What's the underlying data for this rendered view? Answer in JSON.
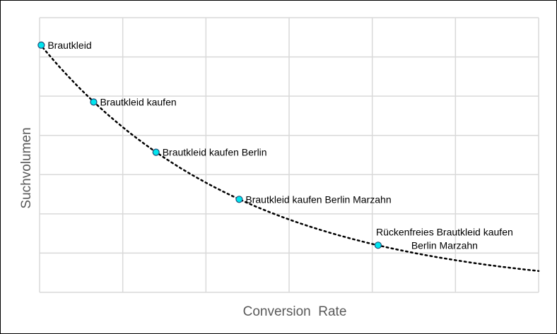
{
  "chart_data": {
    "type": "scatter",
    "title": "",
    "xlabel": "Conversion  Rate",
    "ylabel": "Suchvolumen",
    "xlim": [
      0,
      6
    ],
    "ylim": [
      0,
      7
    ],
    "grid": true,
    "axis_tick_labels": false,
    "colors": {
      "marker_fill": "#00e5ee",
      "marker_stroke": "#1f4e79",
      "trendline": "#000000",
      "grid": "#d9d9d9",
      "axis_title": "#595959"
    },
    "trendline": {
      "type": "exponential",
      "style": "dotted"
    },
    "points": [
      {
        "x": 0.02,
        "y": 6.3,
        "label": [
          "Brautkleid"
        ]
      },
      {
        "x": 0.65,
        "y": 4.85,
        "label": [
          "Brautkleid kaufen"
        ]
      },
      {
        "x": 1.4,
        "y": 3.57,
        "label": [
          "Brautkleid kaufen Berlin"
        ]
      },
      {
        "x": 2.4,
        "y": 2.37,
        "label": [
          "Brautkleid kaufen Berlin Marzahn"
        ]
      },
      {
        "x": 4.07,
        "y": 1.2,
        "label": [
          "Rückenfreies Brautkleid kaufen",
          "Berlin Marzahn"
        ]
      }
    ]
  }
}
